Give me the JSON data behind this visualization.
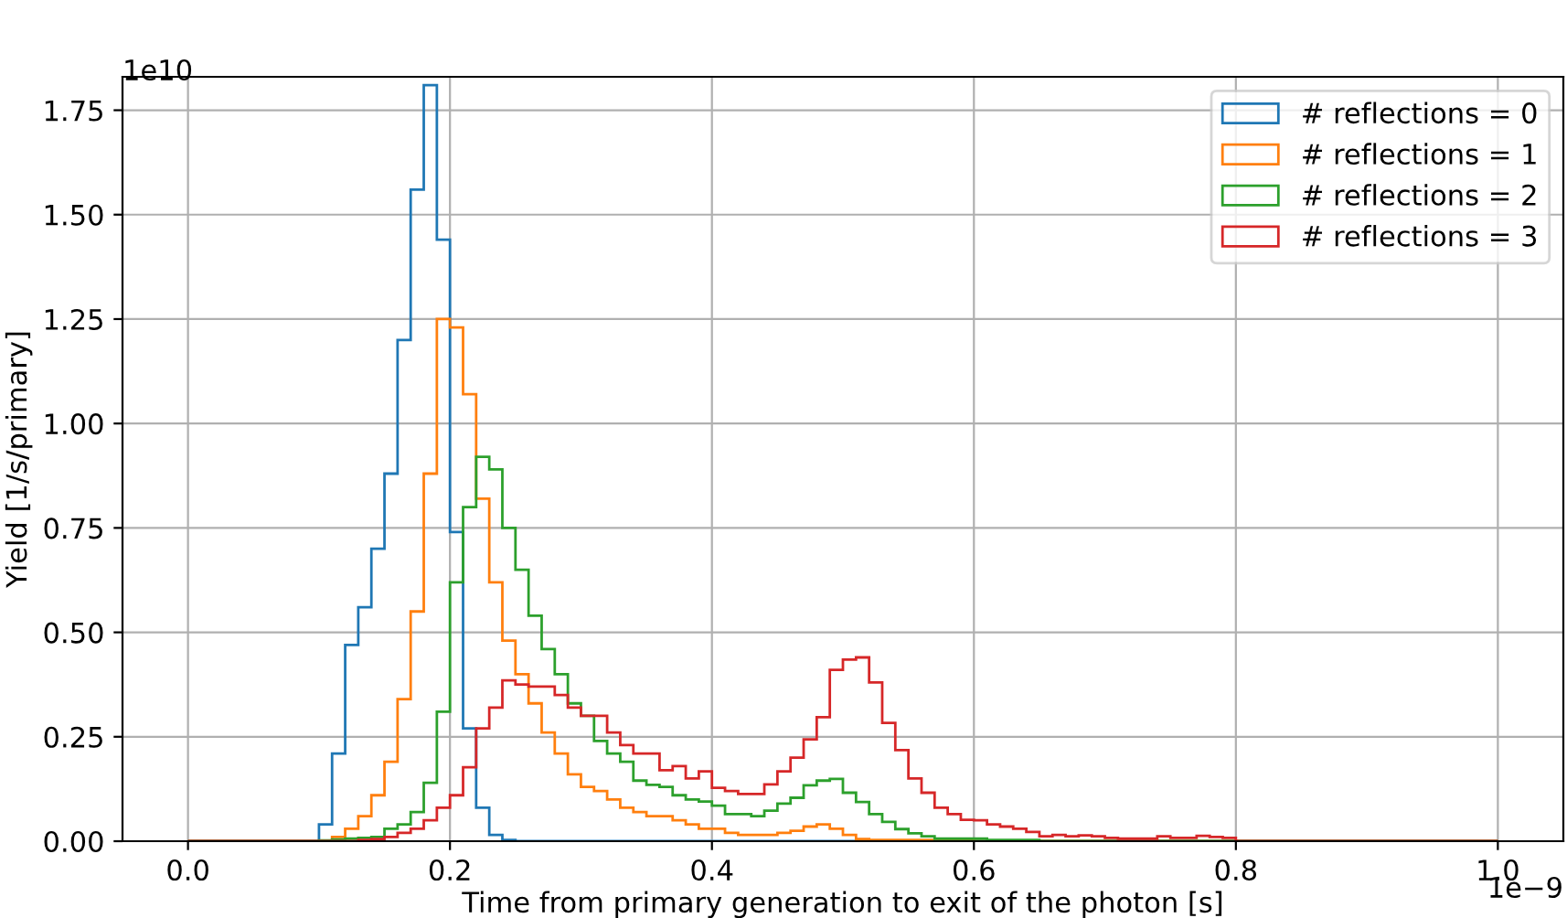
{
  "chart_data": {
    "type": "histogram",
    "xlabel": "Time from primary generation to exit of the photon [s]",
    "ylabel": "Yield [1/s/primary]",
    "annotations": [
      "1e10",
      "1e−9"
    ],
    "bins": [
      0,
      0.01,
      0.02,
      0.03,
      0.04,
      0.05,
      0.06,
      0.07,
      0.08,
      0.09,
      0.1,
      0.11,
      0.12,
      0.13,
      0.14,
      0.15,
      0.16,
      0.17,
      0.18,
      0.19,
      0.2,
      0.21,
      0.22,
      0.23,
      0.24,
      0.25,
      0.26,
      0.27,
      0.28,
      0.29,
      0.3,
      0.31,
      0.32,
      0.33,
      0.34,
      0.35,
      0.36,
      0.37,
      0.38,
      0.39,
      0.4,
      0.41,
      0.42,
      0.43,
      0.44,
      0.45,
      0.46,
      0.47,
      0.48,
      0.49,
      0.5,
      0.51,
      0.52,
      0.53,
      0.54,
      0.55,
      0.56,
      0.57,
      0.58,
      0.59,
      0.6,
      0.61,
      0.62,
      0.63,
      0.64,
      0.65,
      0.66,
      0.67,
      0.68,
      0.69,
      0.7,
      0.71,
      0.72,
      0.73,
      0.74,
      0.75,
      0.76,
      0.77,
      0.78,
      0.79,
      0.8,
      0.81,
      0.82,
      0.83,
      0.84,
      0.85,
      0.86,
      0.87,
      0.88,
      0.89,
      0.9,
      0.91,
      0.92,
      0.93,
      0.94,
      0.95,
      0.96,
      0.97,
      0.98,
      0.99,
      1.0
    ],
    "series": [
      {
        "name": "# reflections = 0",
        "color": "#1f77b4",
        "values": [
          0,
          0,
          0,
          0,
          0,
          0,
          0,
          0,
          0,
          0,
          0.04,
          0.21,
          0.47,
          0.56,
          0.7,
          0.88,
          1.2,
          1.56,
          1.81,
          1.44,
          0.74,
          0.27,
          0.08,
          0.015,
          0.003,
          0,
          0,
          0,
          0,
          0,
          0,
          0,
          0,
          0,
          0,
          0,
          0,
          0,
          0,
          0,
          0,
          0,
          0,
          0,
          0,
          0,
          0,
          0,
          0,
          0,
          0,
          0,
          0,
          0,
          0,
          0,
          0,
          0,
          0,
          0,
          0,
          0,
          0,
          0,
          0,
          0,
          0,
          0,
          0,
          0,
          0,
          0,
          0,
          0,
          0,
          0,
          0,
          0,
          0,
          0,
          0,
          0,
          0,
          0,
          0,
          0,
          0,
          0,
          0,
          0,
          0,
          0,
          0,
          0,
          0,
          0,
          0,
          0,
          0,
          0
        ]
      },
      {
        "name": "# reflections = 1",
        "color": "#ff7f0e",
        "values": [
          0,
          0,
          0,
          0,
          0,
          0,
          0,
          0,
          0,
          0,
          0,
          0.01,
          0.03,
          0.06,
          0.11,
          0.19,
          0.34,
          0.55,
          0.88,
          1.25,
          1.23,
          1.07,
          0.82,
          0.62,
          0.48,
          0.4,
          0.33,
          0.26,
          0.21,
          0.16,
          0.13,
          0.12,
          0.1,
          0.08,
          0.07,
          0.06,
          0.06,
          0.05,
          0.04,
          0.03,
          0.03,
          0.02,
          0.015,
          0.015,
          0.015,
          0.02,
          0.025,
          0.035,
          0.04,
          0.03,
          0.015,
          0.005,
          0.003,
          0.003,
          0.003,
          0.003,
          0.003,
          0.003,
          0.003,
          0.003,
          0,
          0,
          0,
          0,
          0,
          0,
          0,
          0,
          0,
          0,
          0,
          0,
          0,
          0,
          0,
          0,
          0,
          0,
          0,
          0,
          0,
          0,
          0,
          0,
          0,
          0,
          0,
          0,
          0,
          0,
          0,
          0,
          0,
          0,
          0,
          0,
          0,
          0,
          0,
          0
        ]
      },
      {
        "name": "# reflections = 2",
        "color": "#2ca02c",
        "values": [
          0,
          0,
          0,
          0,
          0,
          0,
          0,
          0,
          0,
          0,
          0.002,
          0.004,
          0.006,
          0.008,
          0.01,
          0.03,
          0.04,
          0.07,
          0.14,
          0.31,
          0.62,
          0.8,
          0.92,
          0.89,
          0.75,
          0.65,
          0.54,
          0.46,
          0.4,
          0.33,
          0.3,
          0.24,
          0.21,
          0.19,
          0.145,
          0.135,
          0.13,
          0.11,
          0.1,
          0.095,
          0.085,
          0.065,
          0.065,
          0.06,
          0.073,
          0.09,
          0.104,
          0.134,
          0.145,
          0.149,
          0.116,
          0.094,
          0.065,
          0.046,
          0.029,
          0.019,
          0.012,
          0.006,
          0.006,
          0.006,
          0.006,
          0.003,
          0.003,
          0.003,
          0.003,
          0,
          0,
          0,
          0,
          0,
          0,
          0,
          0,
          0,
          0,
          0,
          0,
          0,
          0,
          0,
          0,
          0,
          0,
          0,
          0,
          0,
          0,
          0,
          0,
          0,
          0,
          0,
          0,
          0,
          0,
          0,
          0,
          0,
          0,
          0
        ]
      },
      {
        "name": "# reflections = 3",
        "color": "#d62728",
        "values": [
          0,
          0,
          0,
          0,
          0,
          0,
          0,
          0,
          0,
          0,
          0,
          0,
          0,
          0.003,
          0.005,
          0.01,
          0.02,
          0.03,
          0.05,
          0.08,
          0.11,
          0.177,
          0.27,
          0.32,
          0.385,
          0.375,
          0.37,
          0.37,
          0.35,
          0.32,
          0.3,
          0.3,
          0.26,
          0.23,
          0.21,
          0.21,
          0.17,
          0.18,
          0.15,
          0.167,
          0.128,
          0.12,
          0.113,
          0.113,
          0.136,
          0.167,
          0.2,
          0.244,
          0.297,
          0.41,
          0.435,
          0.44,
          0.38,
          0.283,
          0.218,
          0.15,
          0.116,
          0.08,
          0.065,
          0.051,
          0.05,
          0.04,
          0.035,
          0.03,
          0.022,
          0.012,
          0.015,
          0.012,
          0.014,
          0.012,
          0.008,
          0.006,
          0.006,
          0.006,
          0.012,
          0.008,
          0.008,
          0.013,
          0.01,
          0.008,
          0,
          0,
          0,
          0,
          0,
          0,
          0,
          0,
          0,
          0,
          0,
          0,
          0,
          0,
          0,
          0,
          0,
          0,
          0,
          0
        ]
      }
    ],
    "xlim": [
      -0.05,
      1.05
    ],
    "ylim": [
      0,
      1.83
    ],
    "xticks": [
      {
        "value": 0,
        "label": "0.0"
      },
      0.2,
      0.4,
      0.6,
      0.8,
      {
        "value": 1.0,
        "label": "1.0"
      }
    ],
    "yticks": [
      {
        "value": 0,
        "label": "0.00"
      },
      0.25,
      {
        "value": 0.5,
        "label": "0.50"
      },
      0.75,
      {
        "value": 1.0,
        "label": "1.00"
      },
      1.25,
      {
        "value": 1.5,
        "label": "1.50"
      },
      1.75
    ],
    "grid": true,
    "legend": "top right"
  }
}
